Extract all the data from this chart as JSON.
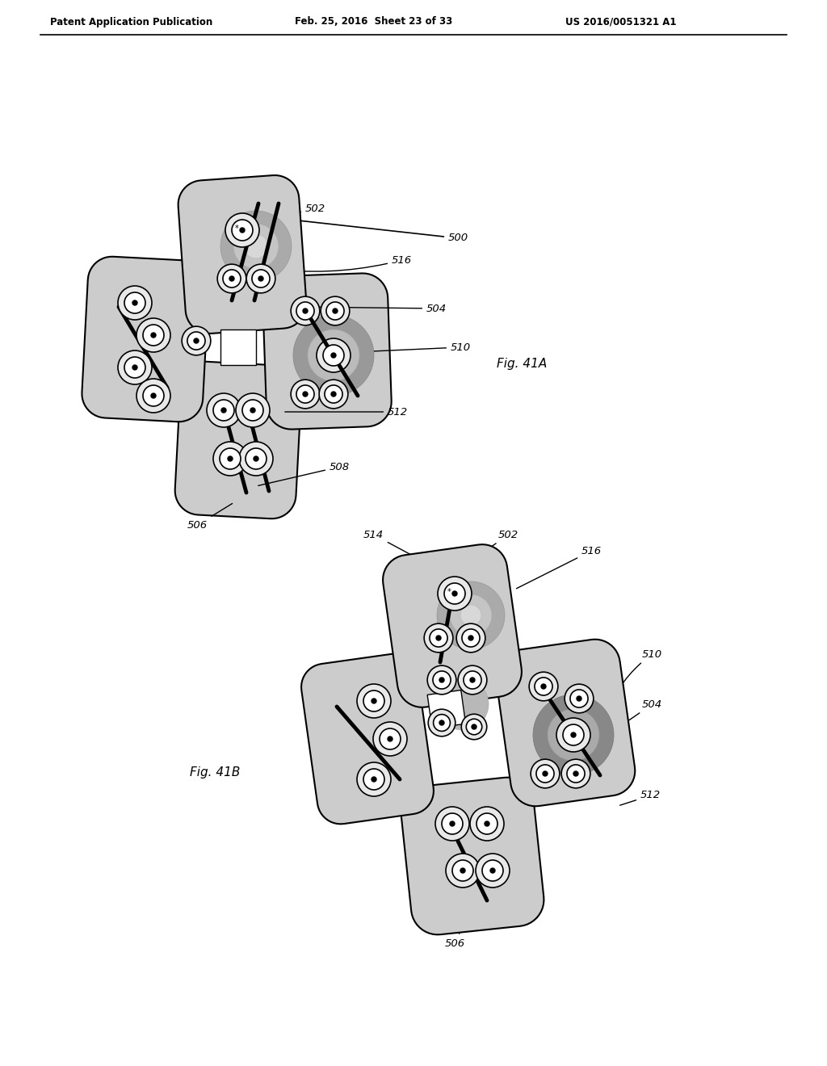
{
  "header_left": "Patent Application Publication",
  "header_center": "Feb. 25, 2016  Sheet 23 of 33",
  "header_right": "US 2016/0051321 A1",
  "fig_a_label": "Fig. 41A",
  "fig_b_label": "Fig. 41B",
  "bg_color": "#ffffff",
  "panel_fill": "#cccccc",
  "panel_edge": "#000000",
  "thick_lw": 3.5,
  "thin_lw": 1.5,
  "header_lw": 1.2
}
